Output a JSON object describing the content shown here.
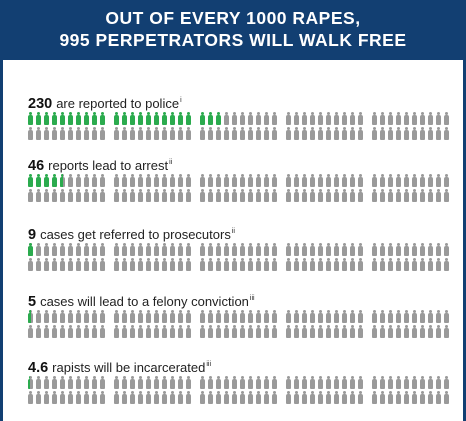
{
  "header": {
    "line1": "OUT OF EVERY 1000 RAPES,",
    "line2": "995 PERPETRATORS WILL WALK FREE"
  },
  "colors": {
    "header_bg": "#123f72",
    "highlight": "#2bab4e",
    "neutral": "#9a9a9a"
  },
  "icon": "person-icon",
  "rows": [
    {
      "number": "230",
      "text": "are reported to police",
      "note": "i",
      "highlighted_per_1000": 230
    },
    {
      "number": "46",
      "text": "reports lead to arrest",
      "note": "ii",
      "highlighted_per_1000": 46
    },
    {
      "number": "9",
      "text": "cases get referred to prosecutors",
      "note": "ii",
      "highlighted_per_1000": 9
    },
    {
      "number": "5",
      "text": "cases will lead to a felony conviction",
      "note": "iii",
      "highlighted_per_1000": 5
    },
    {
      "number": "4.6",
      "text": "rapists will be incarcerated",
      "note": "iii",
      "highlighted_per_1000": 4.6
    }
  ]
}
